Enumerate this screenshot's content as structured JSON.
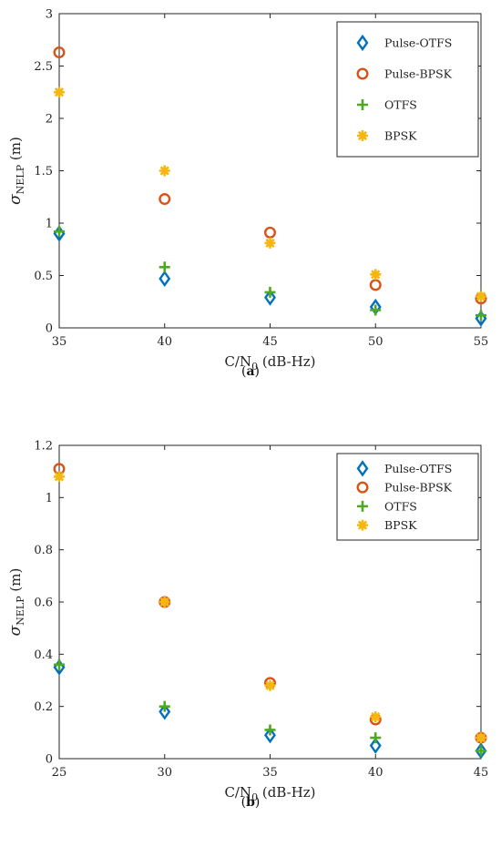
{
  "chart_data": [
    {
      "type": "scatter",
      "caption": "(a)",
      "xlabel_main": "C/N",
      "xlabel_sub": "0",
      "xlabel_tail": " (dB-Hz)",
      "ylabel_main": "σ",
      "ylabel_sub": "NELP",
      "ylabel_tail": " (m)",
      "xlim": [
        35,
        55
      ],
      "ylim": [
        0,
        3
      ],
      "xticks": [
        35,
        40,
        45,
        50,
        55
      ],
      "yticks": [
        0,
        0.5,
        1,
        1.5,
        2,
        2.5,
        3
      ],
      "ytick_labels": [
        "0",
        "0.5",
        "1",
        "1.5",
        "2",
        "2.5",
        "3"
      ],
      "x": [
        35,
        40,
        45,
        50,
        55
      ],
      "legend_position": "top-right",
      "series": [
        {
          "name": "Pulse-OTFS",
          "marker": "diamond",
          "color": "#0072BD",
          "values": [
            0.9,
            0.47,
            0.29,
            0.2,
            0.09
          ]
        },
        {
          "name": "Pulse-BPSK",
          "marker": "circle",
          "color": "#D95319",
          "values": [
            2.63,
            1.23,
            0.91,
            0.41,
            0.28
          ]
        },
        {
          "name": "OTFS",
          "marker": "plus",
          "color": "#4DAA1E",
          "values": [
            0.92,
            0.58,
            0.34,
            0.17,
            0.12
          ]
        },
        {
          "name": "BPSK",
          "marker": "asterisk",
          "color": "#F5B70F",
          "values": [
            2.25,
            1.5,
            0.81,
            0.51,
            0.3
          ]
        }
      ]
    },
    {
      "type": "scatter",
      "caption": "(b)",
      "xlabel_main": "C/N",
      "xlabel_sub": "0",
      "xlabel_tail": " (dB-Hz)",
      "ylabel_main": "σ",
      "ylabel_sub": "NELP",
      "ylabel_tail": " (m)",
      "xlim": [
        25,
        45
      ],
      "ylim": [
        0,
        1.2
      ],
      "xticks": [
        25,
        30,
        35,
        40,
        45
      ],
      "yticks": [
        0,
        0.2,
        0.4,
        0.6,
        0.8,
        1,
        1.2
      ],
      "ytick_labels": [
        "0",
        "0.2",
        "0.4",
        "0.6",
        "0.8",
        "1",
        "1.2"
      ],
      "x": [
        25,
        30,
        35,
        40,
        45
      ],
      "legend_position": "top-right",
      "series": [
        {
          "name": "Pulse-OTFS",
          "marker": "diamond",
          "color": "#0072BD",
          "values": [
            0.35,
            0.18,
            0.09,
            0.05,
            0.03
          ]
        },
        {
          "name": "Pulse-BPSK",
          "marker": "circle",
          "color": "#D95319",
          "values": [
            1.11,
            0.6,
            0.29,
            0.15,
            0.08
          ]
        },
        {
          "name": "OTFS",
          "marker": "plus",
          "color": "#4DAA1E",
          "values": [
            0.36,
            0.2,
            0.11,
            0.08,
            0.03
          ]
        },
        {
          "name": "BPSK",
          "marker": "asterisk",
          "color": "#F5B70F",
          "values": [
            1.08,
            0.6,
            0.28,
            0.16,
            0.08
          ]
        }
      ]
    }
  ]
}
